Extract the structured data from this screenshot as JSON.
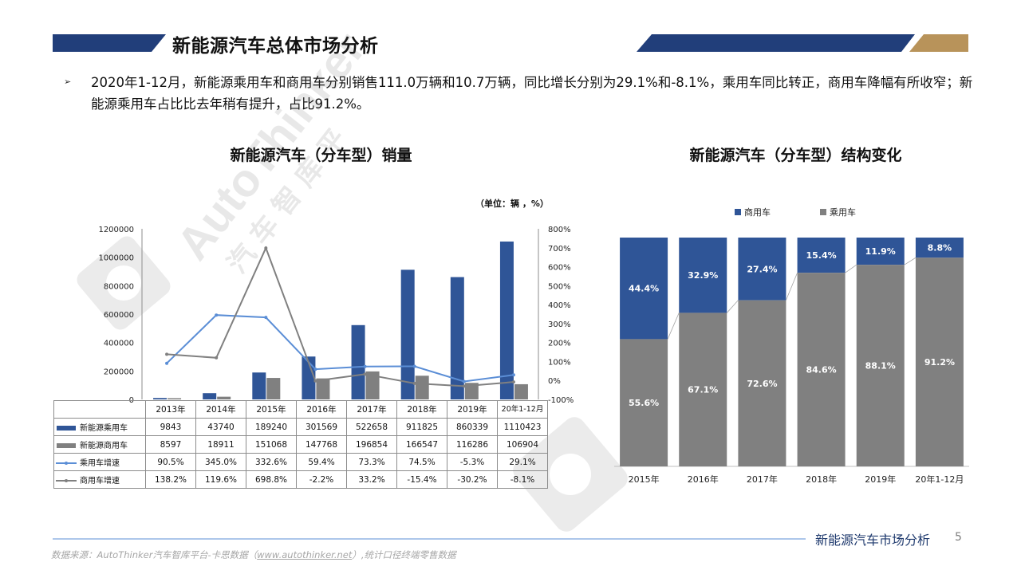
{
  "header": {
    "title": "新能源汽车总体市场分析",
    "bullet": "➢"
  },
  "summary": "2020年1-12月，新能源乘用车和商用车分别销售111.0万辆和10.7万辆，同比增长分别为29.1%和-8.1%，乘用车同比转正，商用车降幅有所收窄；新能源乘用车占比比去年稍有提升，占比91.2%。",
  "colors": {
    "navy": "#2f5597",
    "gray": "#808080",
    "blue_line": "#5b8ed6",
    "gold": "#b8935a",
    "header_navy": "#213e7a"
  },
  "chart_data": [
    {
      "type": "bar",
      "title": "新能源汽车（分车型）销量",
      "unit_note": "（单位：辆  ，%）",
      "categories": [
        "2013年",
        "2014年",
        "2015年",
        "2016年",
        "2017年",
        "2018年",
        "2019年",
        "20年1-12月"
      ],
      "y_ticks": [
        "1200000",
        "1000000",
        "800000",
        "600000",
        "400000",
        "200000",
        "0"
      ],
      "y2_ticks": [
        "800%",
        "700%",
        "600%",
        "500%",
        "400%",
        "300%",
        "200%",
        "100%",
        "0%",
        "-100%"
      ],
      "ylim": [
        0,
        1200000
      ],
      "y2lim": [
        -100,
        800
      ],
      "series": [
        {
          "name": "新能源乘用车",
          "kind": "bar",
          "values": [
            9843,
            43740,
            189240,
            301569,
            522658,
            911825,
            860339,
            1110423
          ],
          "labels": [
            "9843",
            "43740",
            "189240",
            "301569",
            "522658",
            "911825",
            "860339",
            "1110423"
          ]
        },
        {
          "name": "新能源商用车",
          "kind": "bar",
          "values": [
            8597,
            18911,
            151068,
            147768,
            196854,
            166547,
            116286,
            106904
          ],
          "labels": [
            "8597",
            "18911",
            "151068",
            "147768",
            "196854",
            "166547",
            "116286",
            "106904"
          ]
        },
        {
          "name": "乘用车增速",
          "kind": "line",
          "values": [
            90.5,
            345.0,
            332.6,
            59.4,
            73.3,
            74.5,
            -5.3,
            29.1
          ],
          "labels": [
            "90.5%",
            "345.0%",
            "332.6%",
            "59.4%",
            "73.3%",
            "74.5%",
            "-5.3%",
            "29.1%"
          ]
        },
        {
          "name": "商用车增速",
          "kind": "line",
          "values": [
            138.2,
            119.6,
            698.8,
            -2.2,
            33.2,
            -15.4,
            -30.2,
            -8.1
          ],
          "labels": [
            "138.2%",
            "119.6%",
            "698.8%",
            "-2.2%",
            "33.2%",
            "-15.4%",
            "-30.2%",
            "-8.1%"
          ]
        }
      ]
    },
    {
      "type": "bar",
      "stacked": true,
      "title": "新能源汽车（分车型）结构变化",
      "categories": [
        "2015年",
        "2016年",
        "2017年",
        "2018年",
        "2019年",
        "20年1-12月"
      ],
      "legend": [
        "商用车",
        "乘用车"
      ],
      "legend_position": "top",
      "series": [
        {
          "name": "商用车",
          "values": [
            44.4,
            32.9,
            27.4,
            15.4,
            11.9,
            8.8
          ],
          "labels": [
            "44.4%",
            "32.9%",
            "27.4%",
            "15.4%",
            "11.9%",
            "8.8%"
          ]
        },
        {
          "name": "乘用车",
          "values": [
            55.6,
            67.1,
            72.6,
            84.6,
            88.1,
            91.2
          ],
          "labels": [
            "55.6%",
            "67.1%",
            "72.6%",
            "84.6%",
            "88.1%",
            "91.2%"
          ]
        }
      ]
    }
  ],
  "footer": {
    "title": "新能源汽车市场分析",
    "page": "5",
    "source_prefix": "数据来源：AutoThinker汽车智库平台-卡思数据（",
    "source_link": "www.autothinker.net",
    "source_suffix": "）,统计口径终端零售数据"
  },
  "watermark": {
    "brand": "AutoThinker",
    "cn": "汽 车 智 库 平"
  }
}
